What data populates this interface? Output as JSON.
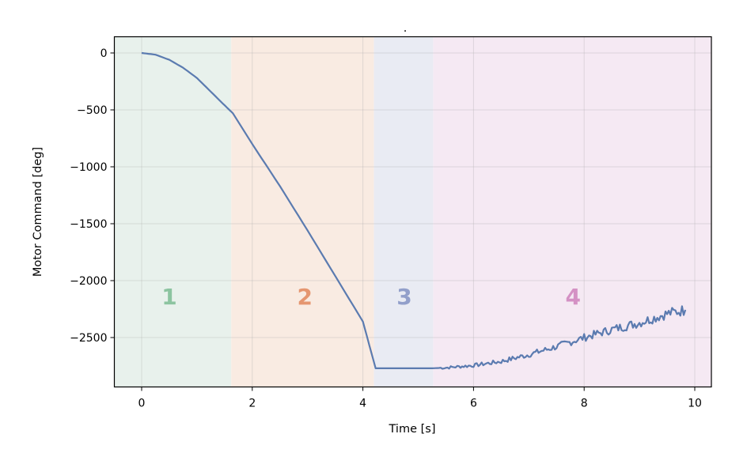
{
  "chart_data": {
    "type": "line",
    "title": ".",
    "xlabel": "Time [s]",
    "ylabel": "Motor Command [deg]",
    "xlim": [
      -0.5,
      10.3
    ],
    "ylim": [
      -2930,
      150
    ],
    "grid": true,
    "x_ticks": [
      0,
      2,
      4,
      6,
      8,
      10
    ],
    "x_tick_labels": [
      "0",
      "2",
      "4",
      "6",
      "8",
      "10"
    ],
    "y_ticks": [
      0,
      -500,
      -1000,
      -1500,
      -2000,
      -2500
    ],
    "y_tick_labels": [
      "0",
      "−500",
      "−1000",
      "−1500",
      "−2000",
      "−2500"
    ],
    "line_color": "#5b7bb0",
    "series": [
      {
        "name": "Motor Command",
        "x": [
          0,
          0.25,
          0.5,
          0.75,
          1.0,
          1.25,
          1.5,
          1.65,
          2.0,
          2.5,
          3.0,
          3.5,
          4.0,
          4.23,
          4.5,
          5.0,
          5.25,
          5.5,
          6.0,
          6.5,
          7.0,
          7.5,
          8.0,
          8.5,
          9.0,
          9.5,
          9.83
        ],
        "values": [
          0,
          -15,
          -60,
          -130,
          -220,
          -340,
          -460,
          -530,
          -800,
          -1170,
          -1560,
          -1960,
          -2360,
          -2770,
          -2770,
          -2770,
          -2770,
          -2765,
          -2745,
          -2710,
          -2650,
          -2580,
          -2500,
          -2430,
          -2370,
          -2290,
          -2257
        ]
      }
    ],
    "regions": [
      {
        "label": "1",
        "x_start": -0.5,
        "x_end": 1.62,
        "fill": "#e8f1ec",
        "text_color": "#8cc4a0",
        "label_x": 0.5
      },
      {
        "label": "2",
        "x_start": 1.62,
        "x_end": 4.2,
        "fill": "#f9ebe2",
        "text_color": "#e59670",
        "label_x": 2.95
      },
      {
        "label": "3",
        "x_start": 4.2,
        "x_end": 5.27,
        "fill": "#e9ebf3",
        "text_color": "#929fca",
        "label_x": 4.75
      },
      {
        "label": "4",
        "x_start": 5.27,
        "x_end": 10.3,
        "fill": "#f5e9f3",
        "text_color": "#d491c4",
        "label_x": 7.8
      }
    ],
    "region_label_y": -2140
  }
}
